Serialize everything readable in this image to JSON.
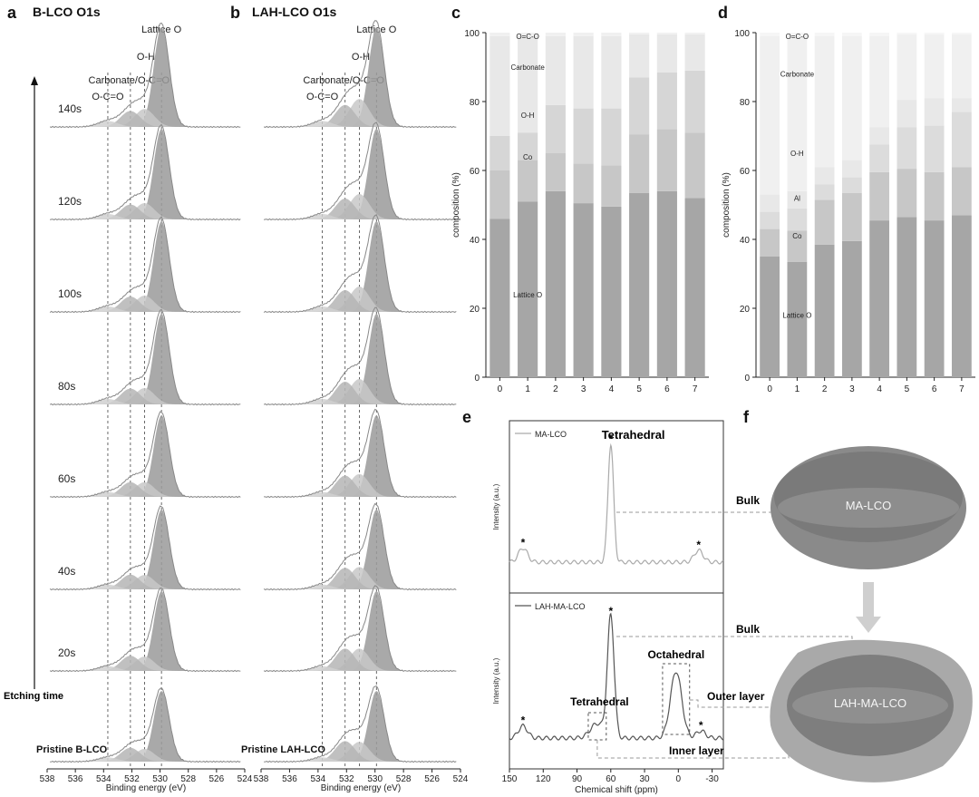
{
  "panels": {
    "a": {
      "letter": "a",
      "title": "B-LCO O1s"
    },
    "b": {
      "letter": "b",
      "title": "LAH-LCO O1s"
    },
    "c": {
      "letter": "c"
    },
    "d": {
      "letter": "d"
    },
    "e": {
      "letter": "e"
    },
    "f": {
      "letter": "f"
    }
  },
  "xps": {
    "xlabel": "Binding energy (eV)",
    "xticks": [
      "538",
      "536",
      "534",
      "532",
      "530",
      "528",
      "526",
      "524"
    ],
    "peaks": {
      "lattice": "Lattice O",
      "oh": "O-H",
      "carbonate": "Carbonate/O-C=O",
      "oco": "O-C=O"
    },
    "etch_labels": [
      "140s",
      "120s",
      "100s",
      "80s",
      "60s",
      "40s",
      "20s"
    ],
    "axis_label": "Etching time",
    "pristine_a": "Pristine B-LCO",
    "pristine_b": "Pristine LAH-LCO"
  },
  "chart_data": [
    {
      "type": "bar",
      "panel": "c",
      "ylabel": "composition (%)",
      "ylim": [
        0,
        100
      ],
      "yticks": [
        "0",
        "20",
        "40",
        "60",
        "80",
        "100"
      ],
      "categories": [
        "0",
        "1",
        "2",
        "3",
        "4",
        "5",
        "6",
        "7"
      ],
      "stacked": true,
      "series": [
        {
          "name": "Lattice O",
          "values": [
            46,
            51,
            54,
            50.5,
            49.5,
            53.5,
            54,
            52
          ]
        },
        {
          "name": "Co",
          "values": [
            14,
            12,
            11,
            11.5,
            12,
            17,
            18,
            19
          ]
        },
        {
          "name": "O-H",
          "values": [
            10,
            8,
            14,
            16,
            16.5,
            16.5,
            16.5,
            18
          ]
        },
        {
          "name": "Carbonate",
          "values": [
            29,
            28,
            20,
            21,
            21,
            12.5,
            11,
            10.5
          ]
        },
        {
          "name": "O=C-O",
          "values": [
            1,
            1,
            1,
            1,
            1,
            0.5,
            0.5,
            0.5
          ]
        }
      ],
      "label_positions": {
        "O=C-O": 0.99,
        "Carbonate": 0.9,
        "O-H": 0.76,
        "Co": 0.64,
        "Lattice O": 0.24
      }
    },
    {
      "type": "bar",
      "panel": "d",
      "ylabel": "composition (%)",
      "ylim": [
        0,
        100
      ],
      "yticks": [
        "0",
        "20",
        "40",
        "60",
        "80",
        "100"
      ],
      "categories": [
        "0",
        "1",
        "2",
        "3",
        "4",
        "5",
        "6",
        "7"
      ],
      "stacked": true,
      "series": [
        {
          "name": "Lattice O",
          "values": [
            35,
            33.5,
            38.5,
            39.5,
            45.5,
            46.5,
            45.5,
            47
          ]
        },
        {
          "name": "Co",
          "values": [
            8,
            9,
            13,
            14,
            14,
            14,
            14,
            14
          ]
        },
        {
          "name": "Al",
          "values": [
            5,
            6.5,
            4.5,
            4.5,
            8,
            12,
            13.5,
            16
          ]
        },
        {
          "name": "O-H",
          "values": [
            5,
            5,
            5,
            5,
            5,
            8,
            8,
            4
          ]
        },
        {
          "name": "Carbonate",
          "values": [
            46,
            45,
            38,
            36,
            26.5,
            19,
            18.5,
            18.5
          ]
        },
        {
          "name": "O=C-O",
          "values": [
            1,
            1,
            1,
            1,
            1,
            0.5,
            0.5,
            0.5
          ]
        }
      ],
      "label_positions": {
        "O=C-O": 0.99,
        "Carbonate": 0.88,
        "O-H": 0.65,
        "Al": 0.52,
        "Co": 0.41,
        "Lattice O": 0.18
      }
    },
    {
      "type": "line",
      "panel": "e",
      "xlabel": "Chemical shift (ppm)",
      "ylabel": "Intensity (a.u.)",
      "xticks": [
        "150",
        "120",
        "90",
        "60",
        "30",
        "0",
        "-30"
      ],
      "xlim": [
        150,
        -40
      ],
      "series": [
        {
          "name": "MA-LCO",
          "peaks": [
            {
              "x": 60,
              "h": 1.0,
              "w": 2.5
            },
            {
              "x": 138,
              "h": 0.12,
              "w": 4
            },
            {
              "x": -18,
              "h": 0.1,
              "w": 4
            }
          ]
        },
        {
          "name": "LAH-MA-LCO",
          "peaks": [
            {
              "x": 60,
              "h": 1.0,
              "w": 3
            },
            {
              "x": 2,
              "h": 0.55,
              "w": 5
            },
            {
              "x": 72,
              "h": 0.12,
              "w": 6
            },
            {
              "x": 138,
              "h": 0.1,
              "w": 4
            },
            {
              "x": -20,
              "h": 0.06,
              "w": 4
            }
          ]
        }
      ],
      "annotations": {
        "tetra_top": "Tetrahedral",
        "tetra_bottom": "Tetrahedral",
        "octa": "Octahedral",
        "star": "*"
      }
    }
  ],
  "schematic": {
    "top_label": "MA-LCO",
    "bottom_label": "LAH-MA-LCO",
    "bulk": "Bulk",
    "outer": "Outer layer",
    "inner": "Inner layer"
  },
  "colors": {
    "fill_light": "#c8c8c8",
    "fill_dark": "#9a9a9a",
    "line": "#888888",
    "bar1": "#a6a6a6",
    "bar2": "#c7c7c7",
    "bar3": "#d6d6d6",
    "bar4": "#e8e8e8",
    "bar5": "#f0f0f0"
  }
}
